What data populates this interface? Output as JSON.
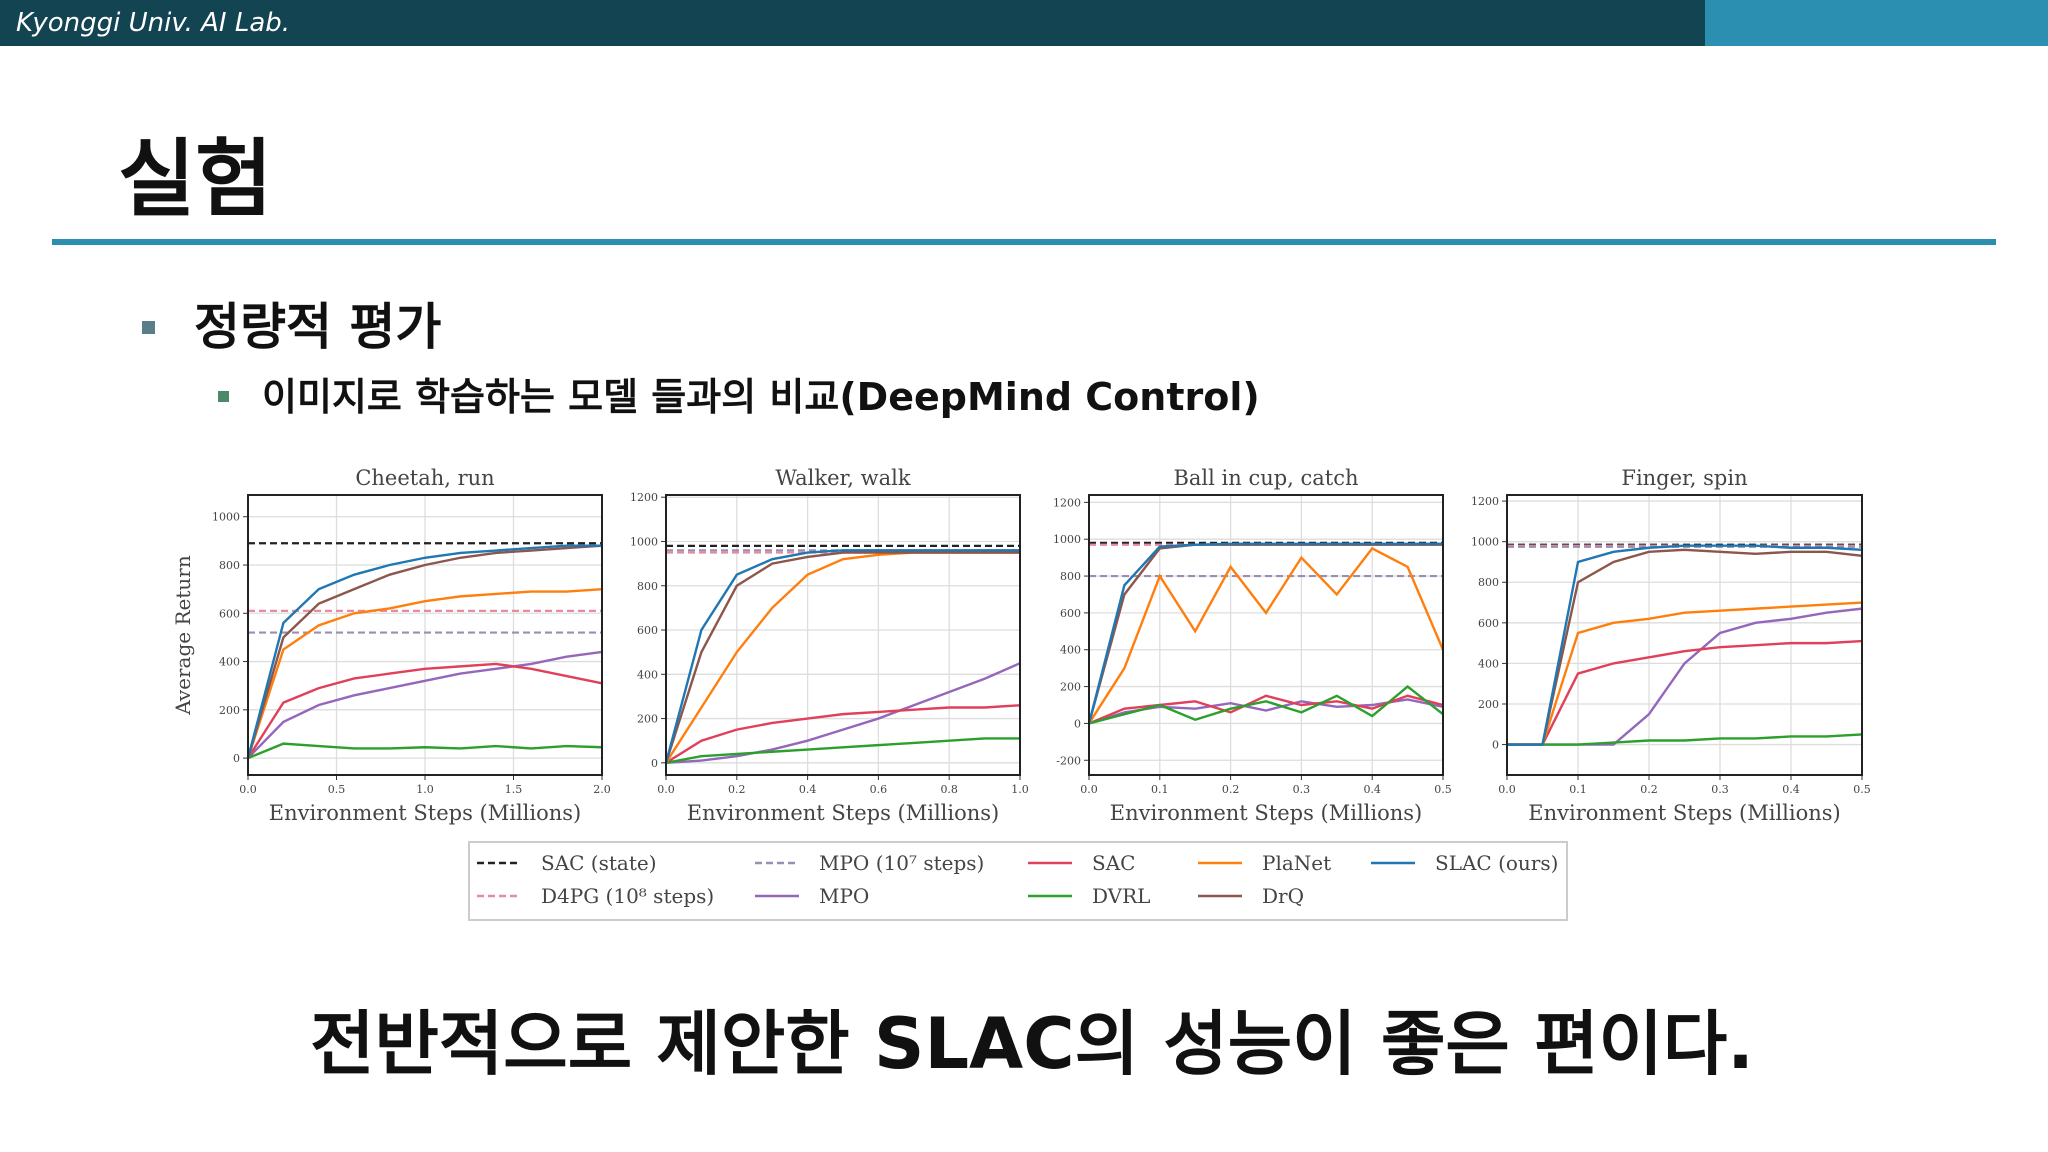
{
  "header": {
    "lab": "Kyonggi Univ. AI Lab."
  },
  "title": "실험",
  "bullet": {
    "text": "정량적 평가",
    "sub": "이미지로 학습하는 모델 들과의 비교(DeepMind Control)"
  },
  "legend": [
    {
      "name": "SAC (state)",
      "color": "#222222",
      "dash": true
    },
    {
      "name": "D4PG (10⁸ steps)",
      "color": "#e88aa0",
      "dash": true
    },
    {
      "name": "MPO (10⁷ steps)",
      "color": "#9a8fb0",
      "dash": true
    },
    {
      "name": "MPO",
      "color": "#9467bd",
      "dash": false
    },
    {
      "name": "SAC",
      "color": "#e0405a",
      "dash": false
    },
    {
      "name": "DVRL",
      "color": "#2ca02c",
      "dash": false
    },
    {
      "name": "PlaNet",
      "color": "#ff7f0e",
      "dash": false
    },
    {
      "name": "DrQ",
      "color": "#8c564b",
      "dash": false
    },
    {
      "name": "SLAC (ours)",
      "color": "#1f77b4",
      "dash": false
    }
  ],
  "chart_data": [
    {
      "type": "line",
      "title": "Cheetah, run",
      "x_label": "Environment Steps (Millions)",
      "y_label": "Average Return",
      "x": [
        0,
        0.2,
        0.4,
        0.6,
        0.8,
        1.0,
        1.2,
        1.4,
        1.6,
        1.8,
        2.0
      ],
      "xlim": [
        0,
        2
      ],
      "xticks": [
        {
          "value": 0,
          "label": "0.0"
        },
        0.5,
        {
          "value": 1,
          "label": "1.0"
        },
        1.5,
        {
          "value": 2,
          "label": "2.0"
        }
      ],
      "ylim": [
        -70,
        1090
      ],
      "yticks": [
        0,
        200,
        400,
        600,
        800,
        1000
      ],
      "grid": true,
      "series": [
        {
          "value": 890
        },
        {
          "value": 610
        },
        {
          "value": 520
        },
        {
          "values": [
            0,
            150,
            220,
            260,
            290,
            320,
            350,
            370,
            390,
            420,
            440
          ]
        },
        {
          "values": [
            0,
            230,
            290,
            330,
            350,
            370,
            380,
            390,
            370,
            340,
            310
          ]
        },
        {
          "values": [
            0,
            60,
            50,
            40,
            40,
            45,
            40,
            50,
            40,
            50,
            45
          ]
        },
        {
          "values": [
            0,
            450,
            550,
            600,
            620,
            650,
            670,
            680,
            690,
            690,
            700
          ]
        },
        {
          "values": [
            0,
            500,
            640,
            700,
            760,
            800,
            830,
            850,
            860,
            870,
            880
          ]
        },
        {
          "values": [
            0,
            560,
            700,
            760,
            800,
            830,
            850,
            860,
            870,
            880,
            880
          ]
        }
      ]
    },
    {
      "type": "line",
      "title": "Walker, walk",
      "x_label": "Environment Steps (Millions)",
      "x": [
        0,
        0.1,
        0.2,
        0.3,
        0.4,
        0.5,
        0.6,
        0.7,
        0.8,
        0.9,
        1.0
      ],
      "xlim": [
        0,
        1
      ],
      "xticks": [
        {
          "value": 0,
          "label": "0.0"
        },
        0.2,
        0.4,
        0.6,
        0.8,
        {
          "value": 1,
          "label": "1.0"
        }
      ],
      "ylim": [
        -55,
        1210
      ],
      "yticks": [
        0,
        200,
        400,
        600,
        800,
        1000,
        1200
      ],
      "grid": true,
      "series": [
        {
          "value": 980
        },
        {
          "value": 950
        },
        {
          "value": 960
        },
        {
          "values": [
            0,
            10,
            30,
            60,
            100,
            150,
            200,
            260,
            320,
            380,
            450
          ]
        },
        {
          "values": [
            0,
            100,
            150,
            180,
            200,
            220,
            230,
            240,
            250,
            250,
            260
          ]
        },
        {
          "values": [
            0,
            30,
            40,
            50,
            60,
            70,
            80,
            90,
            100,
            110,
            110
          ]
        },
        {
          "values": [
            0,
            250,
            500,
            700,
            850,
            920,
            940,
            950,
            950,
            950,
            950
          ]
        },
        {
          "values": [
            0,
            500,
            800,
            900,
            930,
            950,
            950,
            950,
            950,
            950,
            950
          ]
        },
        {
          "values": [
            0,
            600,
            850,
            920,
            950,
            960,
            960,
            960,
            960,
            960,
            960
          ]
        }
      ]
    },
    {
      "type": "line",
      "title": "Ball in cup, catch",
      "x_label": "Environment Steps (Millions)",
      "x": [
        0,
        0.05,
        0.1,
        0.15,
        0.2,
        0.25,
        0.3,
        0.35,
        0.4,
        0.45,
        0.5
      ],
      "xlim": [
        0,
        0.5
      ],
      "xticks": [
        {
          "value": 0,
          "label": "0.0"
        },
        0.1,
        0.2,
        0.3,
        0.4,
        0.5
      ],
      "ylim": [
        -280,
        1240
      ],
      "yticks": [
        -200,
        0,
        200,
        400,
        600,
        800,
        1000,
        1200
      ],
      "grid": true,
      "series": [
        {
          "value": 980
        },
        {
          "value": 970
        },
        {
          "value": 800
        },
        {
          "values": [
            0,
            60,
            90,
            80,
            110,
            70,
            120,
            90,
            100,
            130,
            90
          ]
        },
        {
          "values": [
            0,
            80,
            100,
            120,
            60,
            150,
            100,
            120,
            80,
            150,
            100
          ]
        },
        {
          "values": [
            0,
            50,
            100,
            20,
            80,
            120,
            60,
            150,
            40,
            200,
            50
          ]
        },
        {
          "values": [
            0,
            300,
            800,
            500,
            850,
            600,
            900,
            700,
            950,
            850,
            400
          ]
        },
        {
          "values": [
            0,
            700,
            950,
            970,
            970,
            970,
            970,
            970,
            970,
            970,
            970
          ]
        },
        {
          "values": [
            0,
            750,
            960,
            970,
            975,
            975,
            975,
            975,
            975,
            975,
            975
          ]
        }
      ]
    },
    {
      "type": "line",
      "title": "Finger, spin",
      "x_label": "Environment Steps (Millions)",
      "x": [
        0,
        0.05,
        0.1,
        0.15,
        0.2,
        0.25,
        0.3,
        0.35,
        0.4,
        0.45,
        0.5
      ],
      "xlim": [
        0,
        0.5
      ],
      "xticks": [
        {
          "value": 0,
          "label": "0.0"
        },
        0.1,
        0.2,
        0.3,
        0.4,
        0.5
      ],
      "ylim": [
        -150,
        1230
      ],
      "yticks": [
        0,
        200,
        400,
        600,
        800,
        1000,
        1200
      ],
      "grid": true,
      "series": [
        {
          "value": 985
        },
        {
          "value": 980
        },
        {
          "value": 975
        },
        {
          "values": [
            0,
            0,
            0,
            0,
            150,
            400,
            550,
            600,
            620,
            650,
            670
          ]
        },
        {
          "values": [
            0,
            0,
            350,
            400,
            430,
            460,
            480,
            490,
            500,
            500,
            510
          ]
        },
        {
          "values": [
            0,
            0,
            0,
            10,
            20,
            20,
            30,
            30,
            40,
            40,
            50
          ]
        },
        {
          "values": [
            0,
            0,
            550,
            600,
            620,
            650,
            660,
            670,
            680,
            690,
            700
          ]
        },
        {
          "values": [
            0,
            0,
            800,
            900,
            950,
            960,
            950,
            940,
            950,
            950,
            930
          ]
        },
        {
          "values": [
            0,
            0,
            900,
            950,
            970,
            980,
            980,
            980,
            970,
            970,
            960
          ]
        }
      ]
    }
  ],
  "conclusion": "전반적으로 제안한 SLAC의 성능이 좋은 편이다."
}
